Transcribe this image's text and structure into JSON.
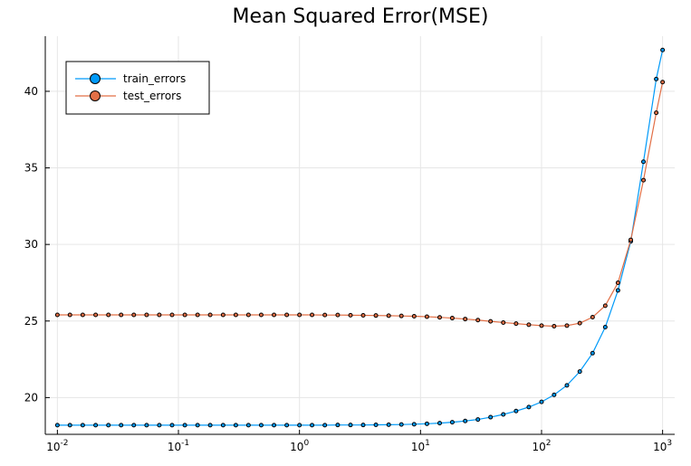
{
  "chart_data": {
    "type": "line",
    "title": "Mean Squared Error(MSE)",
    "xlabel": "",
    "ylabel": "",
    "x_scale": "log",
    "xlim": [
      0.01,
      1000
    ],
    "ylim": [
      17.6,
      43.6
    ],
    "grid": true,
    "legend_position": "top-left",
    "x_ticks": [
      {
        "value": 0.01,
        "base": "10",
        "exp": "-2"
      },
      {
        "value": 0.1,
        "base": "10",
        "exp": "-1"
      },
      {
        "value": 1,
        "base": "10",
        "exp": "0"
      },
      {
        "value": 10,
        "base": "10",
        "exp": "1"
      },
      {
        "value": 100,
        "base": "10",
        "exp": "2"
      },
      {
        "value": 1000,
        "base": "10",
        "exp": "3"
      }
    ],
    "y_ticks": [
      {
        "value": 20,
        "label": "20"
      },
      {
        "value": 25,
        "label": "25"
      },
      {
        "value": 30,
        "label": "30"
      },
      {
        "value": 35,
        "label": "35"
      },
      {
        "value": 40,
        "label": "40"
      }
    ],
    "x": [
      0.01,
      0.0127,
      0.0162,
      0.0207,
      0.0264,
      0.0336,
      0.0428,
      0.0546,
      0.0695,
      0.0886,
      0.113,
      0.144,
      0.183,
      0.234,
      0.298,
      0.379,
      0.483,
      0.616,
      0.785,
      1.0,
      1.27,
      1.62,
      2.07,
      2.64,
      3.36,
      4.28,
      5.46,
      6.95,
      8.86,
      11.3,
      14.4,
      18.3,
      23.4,
      29.8,
      37.9,
      48.3,
      61.6,
      78.5,
      100,
      127,
      162,
      207,
      264,
      336,
      428,
      546,
      695,
      886,
      1000
    ],
    "series": [
      {
        "name": "train_errors",
        "color": "#009af9",
        "values": [
          18.2,
          18.2,
          18.2,
          18.2,
          18.2,
          18.2,
          18.2,
          18.2,
          18.2,
          18.2,
          18.2,
          18.2,
          18.2,
          18.2,
          18.2,
          18.2,
          18.2,
          18.2,
          18.2,
          18.2,
          18.2,
          18.2,
          18.21,
          18.21,
          18.21,
          18.22,
          18.23,
          18.24,
          18.26,
          18.29,
          18.33,
          18.39,
          18.47,
          18.57,
          18.72,
          18.9,
          19.12,
          19.38,
          19.72,
          20.18,
          20.8,
          21.7,
          22.9,
          24.6,
          27.0,
          30.2,
          35.4,
          40.8,
          42.7
        ]
      },
      {
        "name": "test_errors",
        "color": "#e26f46",
        "values": [
          25.4,
          25.4,
          25.4,
          25.4,
          25.4,
          25.4,
          25.4,
          25.4,
          25.4,
          25.4,
          25.4,
          25.4,
          25.4,
          25.4,
          25.4,
          25.4,
          25.4,
          25.4,
          25.4,
          25.4,
          25.4,
          25.39,
          25.39,
          25.38,
          25.37,
          25.36,
          25.35,
          25.33,
          25.31,
          25.28,
          25.24,
          25.19,
          25.13,
          25.06,
          24.98,
          24.9,
          24.83,
          24.76,
          24.7,
          24.66,
          24.7,
          24.86,
          25.25,
          26.0,
          27.5,
          30.3,
          34.2,
          38.6,
          40.6
        ]
      }
    ]
  }
}
